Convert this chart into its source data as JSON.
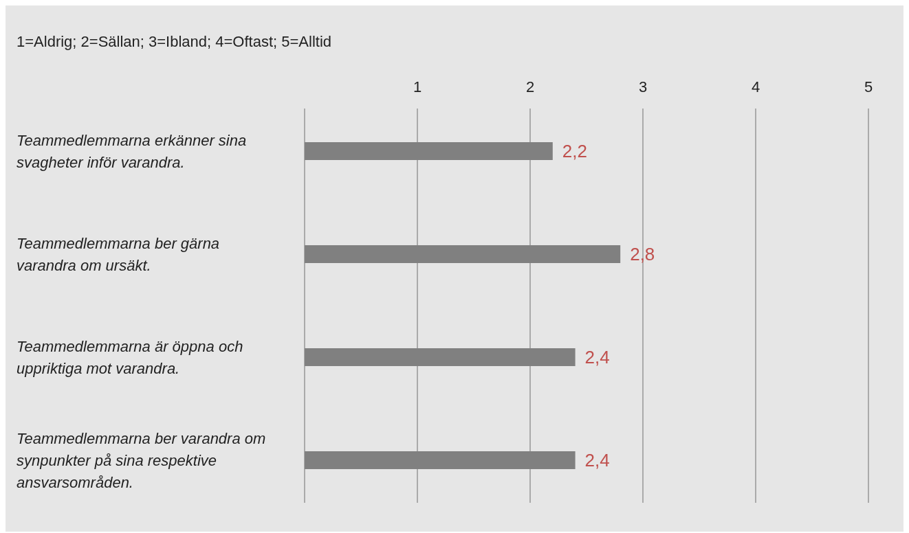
{
  "chart_data": {
    "type": "bar",
    "orientation": "horizontal",
    "title": "1=Aldrig; 2=Sällan; 3=Ibland; 4=Oftast; 5=Alltid",
    "categories": [
      "Teammedlemmarna erkänner sina svagheter inför varandra.",
      "Teammedlemmarna ber gärna varandra om ursäkt.",
      "Teammedlemmarna är öppna och uppriktiga mot varandra.",
      "Teammedlemmarna ber varandra om synpunkter på sina respektive ansvarsområden."
    ],
    "values": [
      2.2,
      2.8,
      2.4,
      2.4
    ],
    "value_labels": [
      "2,2",
      "2,8",
      "2,4",
      "2,4"
    ],
    "color": "#808080",
    "xlim": [
      0,
      5
    ],
    "xticks": [
      {
        "value": 0,
        "label": null
      },
      1,
      2,
      3,
      4,
      5
    ],
    "grid": "x"
  }
}
